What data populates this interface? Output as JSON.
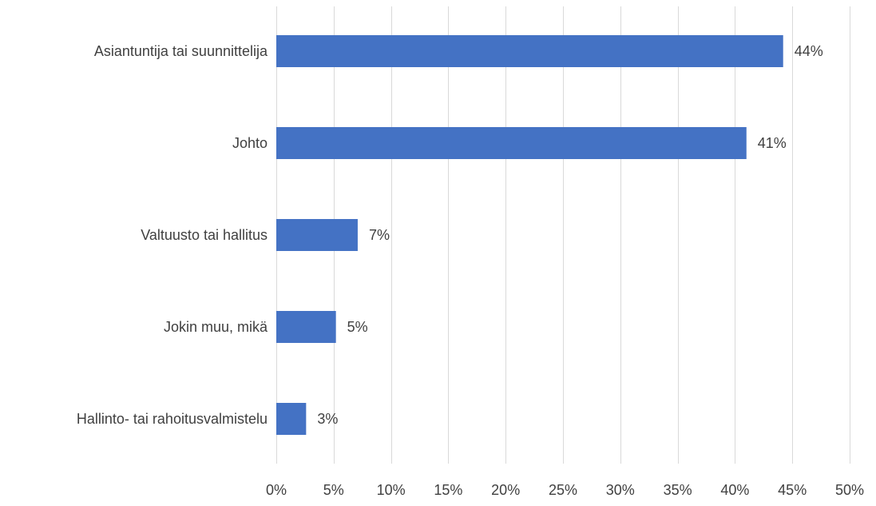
{
  "chart_data": {
    "type": "bar",
    "orientation": "horizontal",
    "title": "",
    "xlabel": "",
    "ylabel": "",
    "categories": [
      "Asiantuntija tai suunnittelija",
      "Johto",
      "Valtuusto tai hallitus",
      "Jokin muu, mikä",
      "Hallinto- tai rahoitusvalmistelu"
    ],
    "values": [
      44.2,
      41.0,
      7.1,
      5.2,
      2.6
    ],
    "data_labels": [
      "44%",
      "41%",
      "7%",
      "5%",
      "3%"
    ],
    "xlim": [
      0,
      50
    ],
    "x_ticks": [
      0,
      5,
      10,
      15,
      20,
      25,
      30,
      35,
      40,
      45,
      50
    ],
    "x_tick_labels": [
      "0%",
      "5%",
      "10%",
      "15%",
      "20%",
      "25%",
      "30%",
      "35%",
      "40%",
      "45%",
      "50%"
    ],
    "grid": "vertical",
    "legend": "none",
    "colors": {
      "bar": "#4472C4",
      "grid": "#D9D9D9",
      "text": "#404040"
    }
  }
}
